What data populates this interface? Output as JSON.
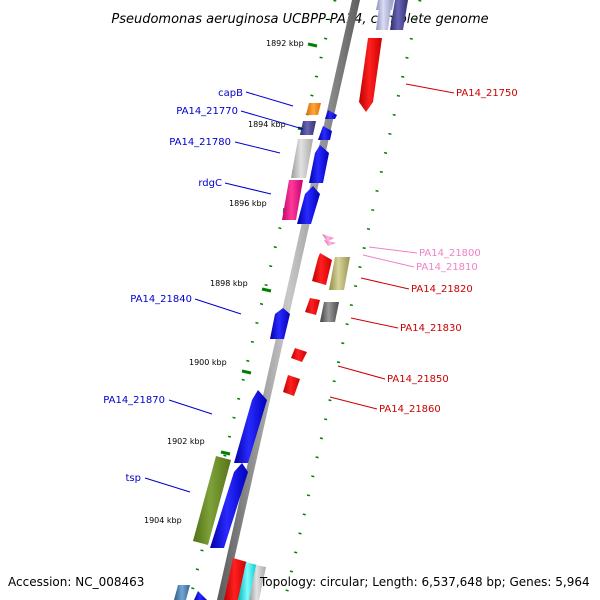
{
  "title": "Pseudomonas aeruginosa UCBPP-PA14, complete genome",
  "footer": {
    "accession": "Accession: NC_008463",
    "topology": "Topology: circular; Length: 6,537,648 bp; Genes: 5,964"
  },
  "ticks": [
    "1892 kbp",
    "1894 kbp",
    "1896 kbp",
    "1898 kbp",
    "1900 kbp",
    "1902 kbp",
    "1904 kbp"
  ],
  "genes_left": [
    "capB",
    "PA14_21770",
    "PA14_21780",
    "rdgC",
    "PA14_21840",
    "PA14_21870",
    "tsp"
  ],
  "genes_right": [
    "PA14_21750",
    "PA14_21800",
    "PA14_21810",
    "PA14_21820",
    "PA14_21830",
    "PA14_21850",
    "PA14_21860"
  ],
  "colors": {
    "forward": "#0000ee",
    "reverse": "#ff0000",
    "tick": "#008000",
    "label_left": "#0000cc",
    "label_right": "#cc0000",
    "label_pink": "#ee82c8"
  }
}
